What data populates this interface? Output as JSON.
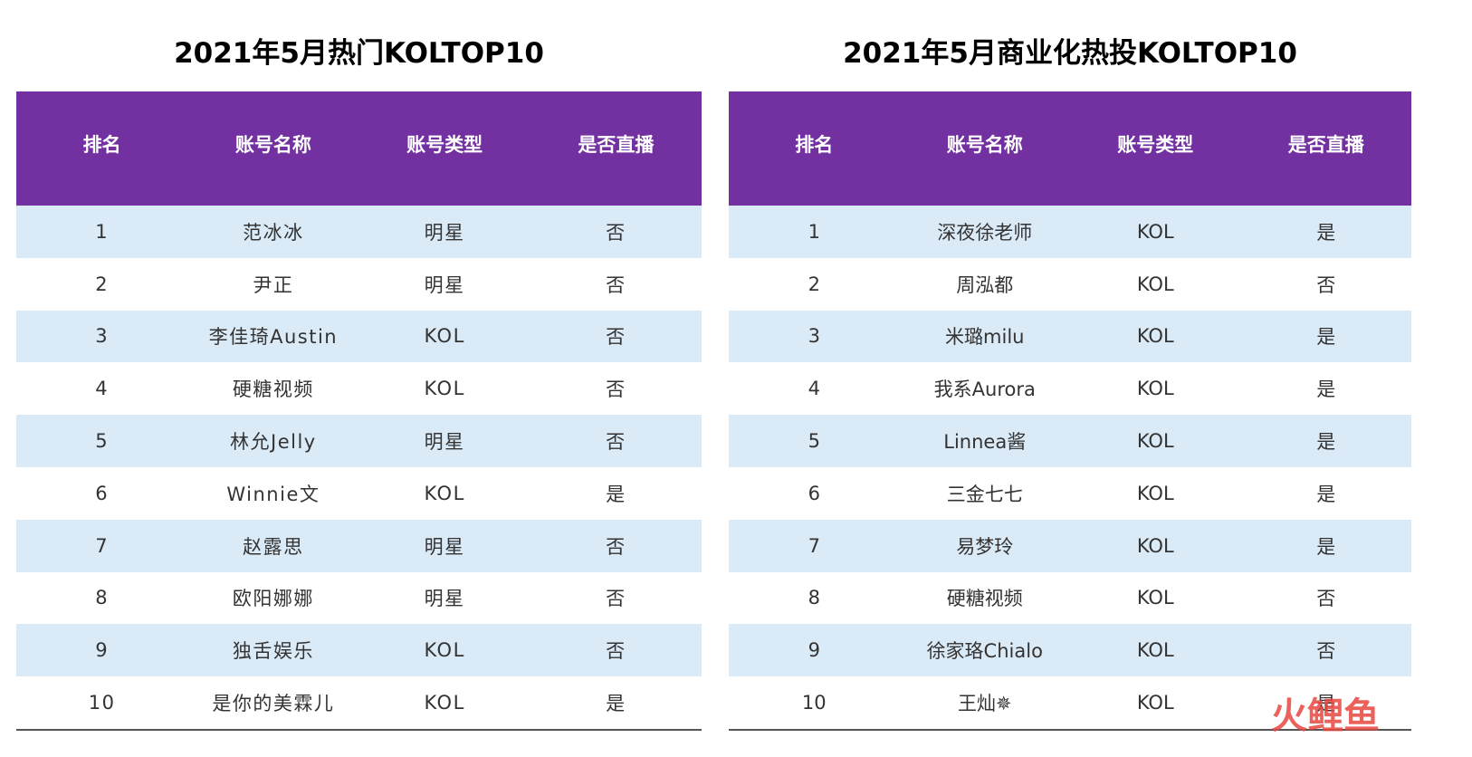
{
  "left_table": {
    "title": "2021年5月热门KOLTOP10",
    "headers": [
      "排名",
      "账号名称",
      "账号类型",
      "是否直播"
    ],
    "rows": [
      [
        "1",
        "范冰冰",
        "明星",
        "否"
      ],
      [
        "2",
        "尹正",
        "明星",
        "否"
      ],
      [
        "3",
        "李佳琦Austin",
        "KOL",
        "否"
      ],
      [
        "4",
        "硬糖视频",
        "KOL",
        "否"
      ],
      [
        "5",
        "林允Jelly",
        "明星",
        "否"
      ],
      [
        "6",
        "Winnie文",
        "KOL",
        "是"
      ],
      [
        "7",
        "赵露思",
        "明星",
        "否"
      ],
      [
        "8",
        "欧阳娜娜",
        "明星",
        "否"
      ],
      [
        "9",
        "独舌娱乐",
        "KOL",
        "否"
      ],
      [
        "10",
        "是你的美霖儿",
        "KOL",
        "是"
      ]
    ]
  },
  "right_table": {
    "title": "2021年5月商业化热投KOLTOP10",
    "headers": [
      "排名",
      "账号名称",
      "账号类型",
      "是否直播"
    ],
    "rows": [
      [
        "1",
        "深夜徐老师",
        "KOL",
        "是"
      ],
      [
        "2",
        "周泓都",
        "KOL",
        "否"
      ],
      [
        "3",
        "米璐milu",
        "KOL",
        "是"
      ],
      [
        "4",
        "我系Aurora",
        "KOL",
        "是"
      ],
      [
        "5",
        "Linnea酱",
        "KOL",
        "是"
      ],
      [
        "6",
        "三金七七",
        "KOL",
        "是"
      ],
      [
        "7",
        "易梦玲",
        "KOL",
        "是"
      ],
      [
        "8",
        "硬糖视频",
        "KOL",
        "否"
      ],
      [
        "9",
        "徐家珞Chialo",
        "KOL",
        "否"
      ],
      [
        "10",
        "王灿✵",
        "KOL",
        "是"
      ]
    ]
  },
  "watermark": {
    "text": "火鲤鱼",
    "colors": [
      "#e8473f",
      "#f3a59f"
    ]
  },
  "colors": {
    "header_bg": "#7230a0",
    "stripe_bg": "#dbeaf7"
  }
}
